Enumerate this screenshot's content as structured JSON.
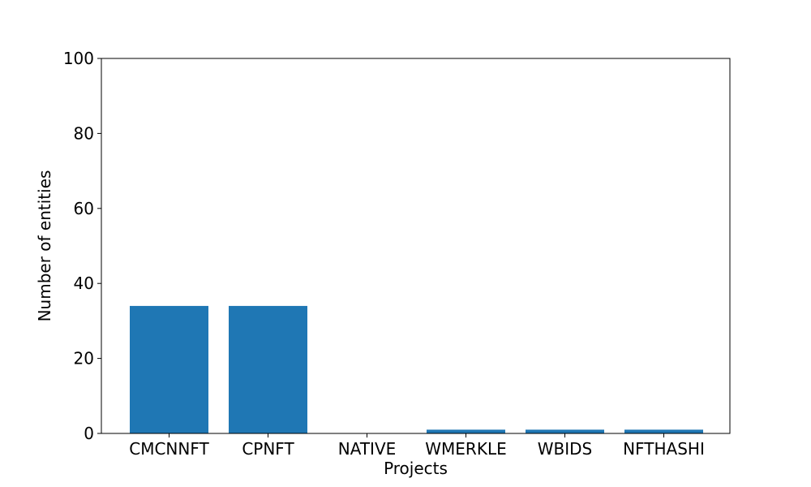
{
  "chart_data": {
    "type": "bar",
    "categories": [
      "CMCNNFT",
      "CPNFT",
      "NATIVE",
      "WMERKLE",
      "WBIDS",
      "NFTHASHI"
    ],
    "values": [
      34,
      34,
      0,
      1,
      1,
      1
    ],
    "xlabel": "Projects",
    "ylabel": "Number of entities",
    "ylim": [
      0,
      100
    ],
    "yticks": [
      0,
      20,
      40,
      60,
      80,
      100
    ],
    "grid": false,
    "bar_color": "#1f77b4"
  }
}
